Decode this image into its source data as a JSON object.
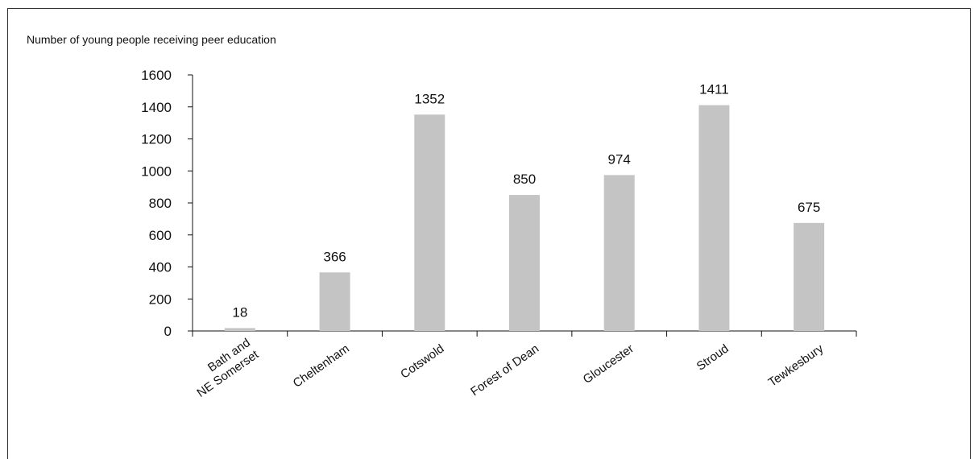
{
  "chart_data": {
    "type": "bar",
    "title": "Number of young people receiving peer education",
    "xlabel": "",
    "ylabel": "",
    "categories": [
      [
        "Bath and",
        "NE Somerset"
      ],
      [
        "Cheltenham"
      ],
      [
        "Cotswold"
      ],
      [
        "Forest of Dean"
      ],
      [
        "Gloucester"
      ],
      [
        "Stroud"
      ],
      [
        "Tewkesbury"
      ]
    ],
    "values": [
      18,
      366,
      1352,
      850,
      974,
      1411,
      675
    ],
    "data_labels": [
      "18",
      "366",
      "1352",
      "850",
      "974",
      "1411",
      "675"
    ],
    "y_ticks": [
      "0",
      "200",
      "400",
      "600",
      "800",
      "1000",
      "1200",
      "1400",
      "1600"
    ],
    "ylim": [
      0,
      1600
    ],
    "grid": false,
    "legend": "none",
    "bar_color": "#c4c4c4",
    "axis_color": "#111111"
  }
}
